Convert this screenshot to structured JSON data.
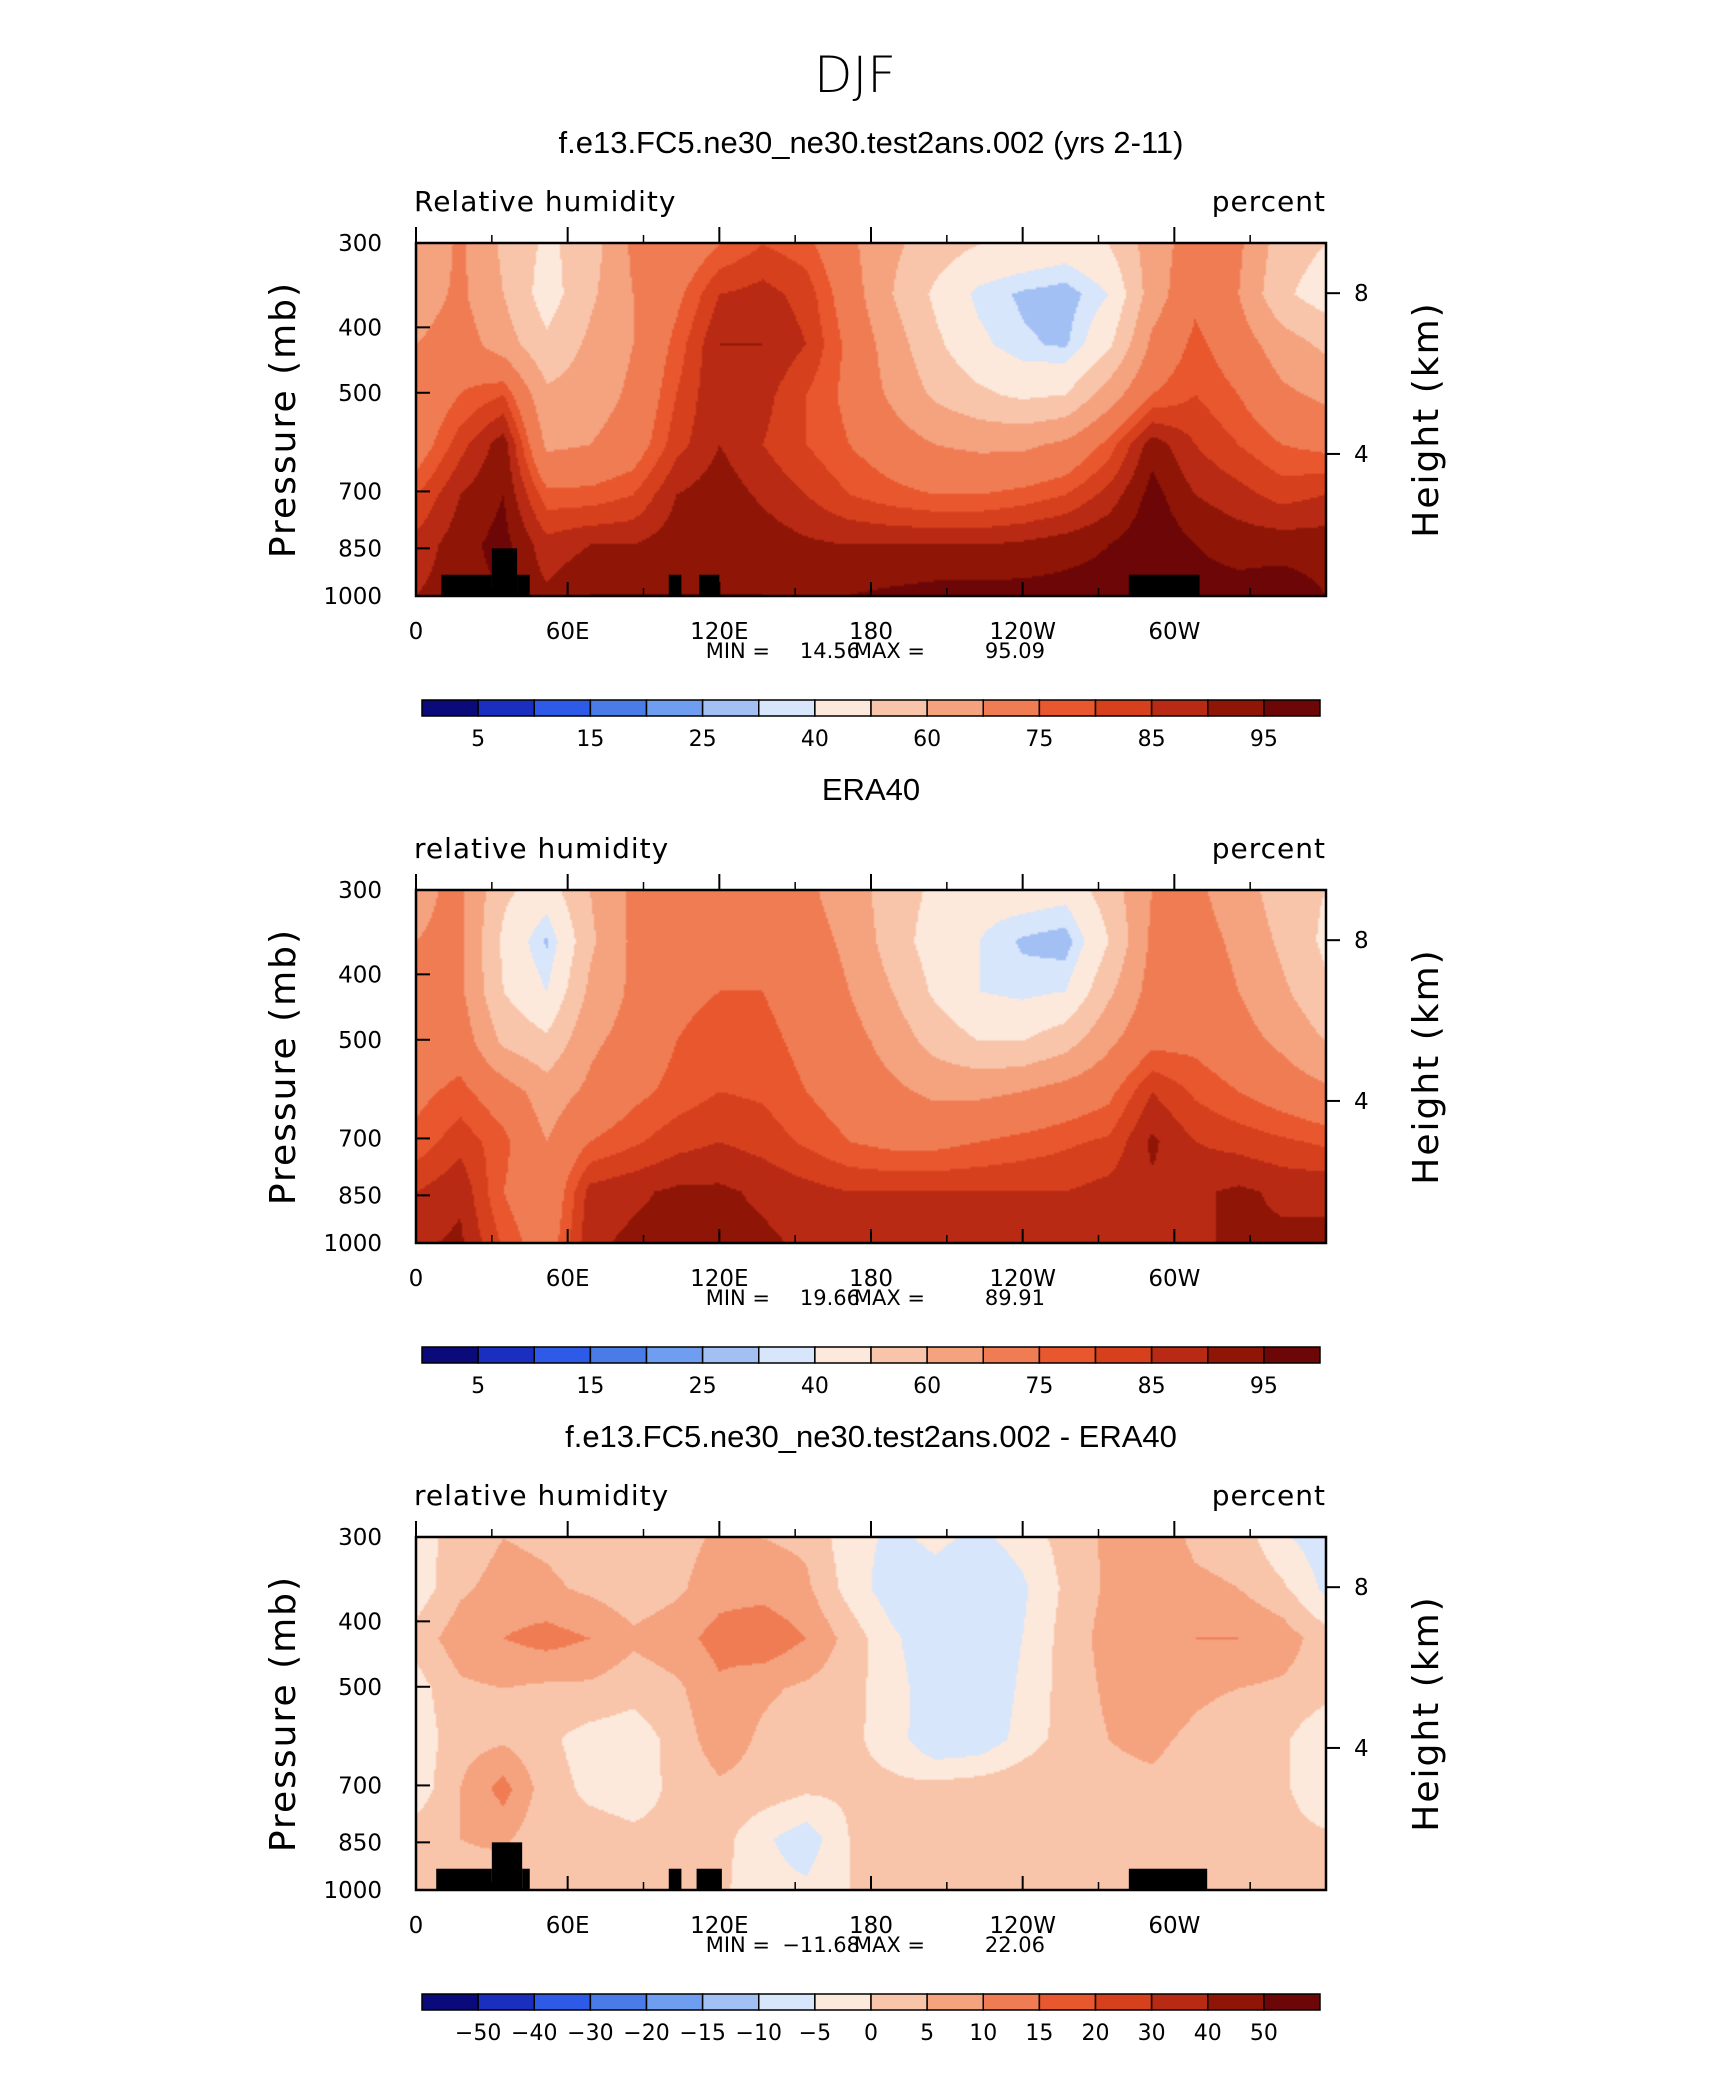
{
  "figure": {
    "title": "DJF"
  },
  "chart_data": [
    {
      "type": "heatmap",
      "title": "f.e13.FC5.ne30_ne30.test2ans.002 (yrs 2-11)",
      "left_label": "Relative humidity",
      "right_label": "percent",
      "ylabel": "Pressure (mb)",
      "y2label": "Height (km)",
      "yticks": [
        "300",
        "400",
        "500",
        "700",
        "850",
        "1000"
      ],
      "y2ticks": [
        "8",
        "4"
      ],
      "xticks": [
        "0",
        "60E",
        "120E",
        "180",
        "120W",
        "60W"
      ],
      "ylim": [
        1000,
        300
      ],
      "xlim": [
        0,
        360
      ],
      "min_label": "MIN =",
      "min_value": "14.56",
      "max_label": "MAX =",
      "max_value": "95.09",
      "colorbar_labels": [
        "5",
        "15",
        "25",
        "40",
        "60",
        "75",
        "85",
        "95"
      ],
      "colorbar_colors": [
        "#0a0a7a",
        "#1a2fbf",
        "#2e5ae8",
        "#4a7ce8",
        "#6f9ef0",
        "#a3c0f5",
        "#d7e6fb",
        "#fde9dc",
        "#f9c5aa",
        "#f5a27f",
        "#f07c53",
        "#e9572e",
        "#d7401d",
        "#b82a13",
        "#8f1607",
        "#6d0606"
      ],
      "levels": [
        1,
        5,
        10,
        15,
        20,
        25,
        30,
        40,
        50,
        60,
        70,
        75,
        80,
        85,
        90,
        95
      ],
      "grid": [
        [
          50,
          62,
          48,
          38,
          45,
          62,
          62,
          70,
          75,
          72,
          62,
          52,
          45,
          40,
          38,
          35,
          40,
          55,
          65,
          62,
          45,
          40
        ],
        [
          55,
          62,
          50,
          35,
          48,
          60,
          68,
          80,
          82,
          78,
          65,
          50,
          38,
          28,
          24,
          22,
          30,
          55,
          68,
          60,
          42,
          35
        ],
        [
          60,
          65,
          55,
          42,
          52,
          60,
          72,
          85,
          85,
          80,
          68,
          55,
          42,
          32,
          26,
          24,
          38,
          62,
          72,
          65,
          55,
          48
        ],
        [
          62,
          70,
          75,
          52,
          55,
          62,
          75,
          85,
          82,
          75,
          68,
          58,
          48,
          42,
          38,
          40,
          55,
          70,
          75,
          70,
          62,
          58
        ],
        [
          65,
          78,
          88,
          58,
          60,
          65,
          78,
          85,
          80,
          75,
          70,
          65,
          60,
          58,
          58,
          62,
          72,
          88,
          80,
          75,
          70,
          68
        ],
        [
          75,
          85,
          90,
          72,
          72,
          75,
          85,
          88,
          84,
          80,
          75,
          72,
          70,
          70,
          72,
          75,
          82,
          92,
          85,
          82,
          78,
          80
        ],
        [
          82,
          88,
          92,
          82,
          85,
          85,
          88,
          90,
          88,
          86,
          85,
          85,
          85,
          85,
          86,
          88,
          90,
          94,
          90,
          88,
          88,
          88
        ],
        [
          85,
          88,
          90,
          86,
          90,
          90,
          90,
          90,
          90,
          89,
          90,
          91,
          92,
          92,
          92,
          92,
          92,
          93,
          92,
          92,
          93,
          90
        ]
      ],
      "topography": [
        [
          10,
          30,
          1000,
          930
        ],
        [
          30,
          40,
          1000,
          850
        ],
        [
          40,
          45,
          1000,
          930
        ],
        [
          100,
          105,
          1000,
          930
        ],
        [
          112,
          120,
          1000,
          930
        ],
        [
          282,
          310,
          1000,
          930
        ]
      ]
    },
    {
      "type": "heatmap",
      "title": "ERA40",
      "left_label": "relative humidity",
      "right_label": "percent",
      "ylabel": "Pressure (mb)",
      "y2label": "Height (km)",
      "yticks": [
        "300",
        "400",
        "500",
        "700",
        "850",
        "1000"
      ],
      "y2ticks": [
        "8",
        "4"
      ],
      "xticks": [
        "0",
        "60E",
        "120E",
        "180",
        "120W",
        "60W"
      ],
      "ylim": [
        1000,
        300
      ],
      "xlim": [
        0,
        360
      ],
      "min_label": "MIN =",
      "min_value": "19.66",
      "max_label": "MAX =",
      "max_value": "89.91",
      "colorbar_labels": [
        "5",
        "15",
        "25",
        "40",
        "60",
        "75",
        "85",
        "95"
      ],
      "colorbar_colors": [
        "#0a0a7a",
        "#1a2fbf",
        "#2e5ae8",
        "#4a7ce8",
        "#6f9ef0",
        "#a3c0f5",
        "#d7e6fb",
        "#fde9dc",
        "#f9c5aa",
        "#f5a27f",
        "#f07c53",
        "#e9572e",
        "#d7401d",
        "#b82a13",
        "#8f1607",
        "#6d0606"
      ],
      "levels": [
        1,
        5,
        10,
        15,
        20,
        25,
        30,
        40,
        50,
        60,
        70,
        75,
        80,
        85,
        90,
        95
      ],
      "grid": [
        [
          58,
          62,
          42,
          35,
          50,
          62,
          65,
          65,
          65,
          62,
          55,
          45,
          38,
          34,
          35,
          33,
          45,
          60,
          62,
          55,
          45,
          40
        ],
        [
          60,
          62,
          38,
          24,
          48,
          62,
          66,
          66,
          66,
          64,
          58,
          45,
          35,
          30,
          24,
          22,
          40,
          62,
          64,
          58,
          48,
          38
        ],
        [
          62,
          62,
          40,
          30,
          52,
          62,
          68,
          70,
          70,
          66,
          60,
          50,
          38,
          30,
          28,
          30,
          48,
          64,
          66,
          60,
          52,
          42
        ],
        [
          64,
          66,
          48,
          42,
          58,
          64,
          70,
          73,
          72,
          68,
          64,
          56,
          46,
          40,
          40,
          46,
          58,
          68,
          68,
          64,
          58,
          50
        ],
        [
          68,
          72,
          65,
          55,
          62,
          68,
          72,
          75,
          74,
          70,
          66,
          62,
          58,
          58,
          60,
          64,
          68,
          80,
          74,
          70,
          66,
          62
        ],
        [
          72,
          78,
          72,
          60,
          70,
          74,
          78,
          80,
          78,
          74,
          70,
          68,
          68,
          70,
          72,
          74,
          76,
          86,
          80,
          78,
          76,
          74
        ],
        [
          80,
          84,
          70,
          62,
          82,
          84,
          86,
          86,
          84,
          82,
          80,
          80,
          80,
          80,
          80,
          80,
          82,
          84,
          84,
          86,
          84,
          84
        ],
        [
          84,
          86,
          74,
          65,
          84,
          86,
          87,
          87,
          86,
          84,
          83,
          82,
          82,
          82,
          82,
          82,
          84,
          84,
          84,
          86,
          86,
          86
        ]
      ],
      "topography": []
    },
    {
      "type": "heatmap",
      "title": "f.e13.FC5.ne30_ne30.test2ans.002 - ERA40",
      "left_label": "relative humidity",
      "right_label": "percent",
      "ylabel": "Pressure (mb)",
      "y2label": "Height (km)",
      "yticks": [
        "300",
        "400",
        "500",
        "700",
        "850",
        "1000"
      ],
      "y2ticks": [
        "8",
        "4"
      ],
      "xticks": [
        "0",
        "60E",
        "120E",
        "180",
        "120W",
        "60W"
      ],
      "ylim": [
        1000,
        300
      ],
      "xlim": [
        0,
        360
      ],
      "min_label": "MIN =",
      "min_value": "−11.68",
      "max_label": "MAX =",
      "max_value": "22.06",
      "colorbar_labels": [
        "−50",
        "−40",
        "−30",
        "−20",
        "−15",
        "−10",
        "−5",
        "0",
        "5",
        "10",
        "15",
        "20",
        "30",
        "40",
        "50"
      ],
      "colorbar_colors": [
        "#0a0a7a",
        "#1a2fbf",
        "#2e5ae8",
        "#4a7ce8",
        "#6f9ef0",
        "#a3c0f5",
        "#d7e6fb",
        "#fde9dc",
        "#f9c5aa",
        "#f5a27f",
        "#f07c53",
        "#e9572e",
        "#d7401d",
        "#b82a13",
        "#8f1607",
        "#6d0606"
      ],
      "levels": [
        -50,
        -40,
        -30,
        -20,
        -15,
        -10,
        -5,
        0,
        5,
        10,
        15,
        20,
        30,
        40,
        50
      ],
      "grid": [
        [
          -2,
          2,
          5,
          4,
          2,
          1,
          3,
          6,
          5,
          4,
          -3,
          -6,
          -4,
          -6,
          -3,
          2,
          6,
          8,
          4,
          3,
          -4,
          -8
        ],
        [
          -3,
          4,
          7,
          6,
          4,
          2,
          4,
          8,
          8,
          6,
          -2,
          -8,
          -7,
          -10,
          -6,
          1,
          6,
          9,
          6,
          5,
          1,
          -6
        ],
        [
          2,
          8,
          10,
          12,
          10,
          6,
          8,
          12,
          14,
          10,
          3,
          -4,
          -9,
          -10,
          -5,
          2,
          7,
          8,
          10,
          10,
          8,
          2
        ],
        [
          -2,
          4,
          5,
          4,
          4,
          2,
          4,
          9,
          6,
          4,
          2,
          -3,
          -8,
          -10,
          -4,
          2,
          6,
          8,
          6,
          5,
          4,
          2
        ],
        [
          -3,
          3,
          4,
          1,
          -2,
          -3,
          2,
          8,
          4,
          2,
          1,
          -2,
          -10,
          -9,
          -3,
          2,
          5,
          6,
          4,
          2,
          1,
          -4
        ],
        [
          -3,
          5,
          12,
          2,
          -1,
          -2,
          1,
          4,
          3,
          1,
          1,
          1,
          2,
          3,
          4,
          5,
          4,
          4,
          3,
          2,
          1,
          -4
        ],
        [
          3,
          5,
          6,
          1,
          2,
          1,
          1,
          2,
          -4,
          -8,
          0,
          2,
          3,
          4,
          4,
          4,
          3,
          3,
          3,
          3,
          2,
          1
        ],
        [
          3,
          3,
          2,
          1,
          1,
          1,
          1,
          1,
          -3,
          -4,
          0,
          2,
          3,
          4,
          4,
          4,
          3,
          3,
          3,
          3,
          2,
          2
        ]
      ],
      "topography": [
        [
          8,
          30,
          1000,
          930
        ],
        [
          30,
          42,
          1000,
          850
        ],
        [
          42,
          45,
          1000,
          930
        ],
        [
          100,
          105,
          1000,
          930
        ],
        [
          111,
          121,
          1000,
          930
        ],
        [
          282,
          313,
          1000,
          930
        ]
      ]
    }
  ]
}
